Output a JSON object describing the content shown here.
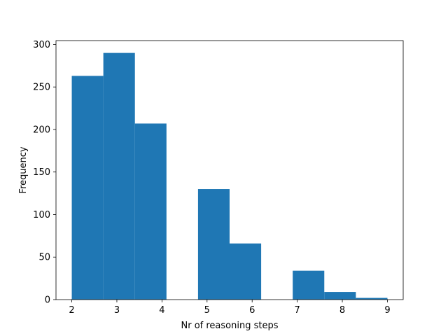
{
  "chart_data": {
    "type": "bar",
    "title": "",
    "xlabel": "Nr of reasoning steps",
    "ylabel": "Frequency",
    "xlim": [
      1.65,
      9.35
    ],
    "ylim": [
      0,
      304.5
    ],
    "bin_edges": [
      2,
      2.7,
      3.4,
      4.1,
      4.8,
      5.5,
      6.2,
      6.9,
      7.6,
      8.3,
      9
    ],
    "values": [
      263,
      290,
      207,
      0,
      130,
      66,
      0,
      34,
      9,
      2
    ],
    "xticks": [
      "2",
      "3",
      "4",
      "5",
      "6",
      "7",
      "8",
      "9"
    ],
    "yticks": [
      "0",
      "50",
      "100",
      "150",
      "200",
      "250",
      "300"
    ],
    "grid": false,
    "bar_color": "#1f77b4"
  }
}
